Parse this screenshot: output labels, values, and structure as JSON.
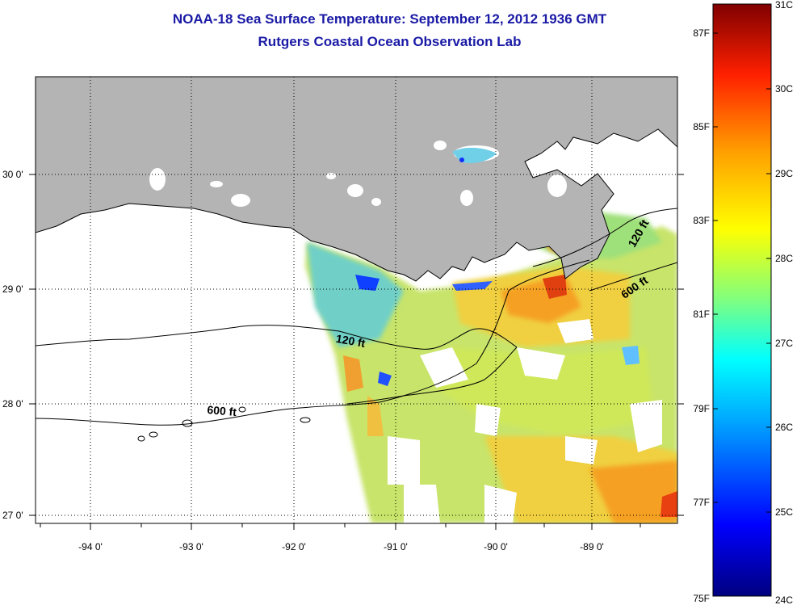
{
  "header": {
    "title": "NOAA-18 Sea Surface Temperature:  September 12, 2012 1936 GMT",
    "subtitle": "Rutgers Coastal Ocean Observation Lab"
  },
  "map": {
    "lon_labels": [
      "-94 0'",
      "-93 0'",
      "-92 0'",
      "-91 0'",
      "-90 0'",
      "-89 0'"
    ],
    "lat_labels": [
      "30 0'",
      "29 0'",
      "28 0'",
      "27 0'"
    ],
    "contour_labels": [
      "120 ft",
      "600 ft",
      "120 ft",
      "600 ft"
    ],
    "land_color": "#b4b4b4"
  },
  "colorbar": {
    "celsius_labels": [
      "31C",
      "30C",
      "29C",
      "28C",
      "27C",
      "26C",
      "25C",
      "24C"
    ],
    "fahrenheit_labels": [
      "87F",
      "85F",
      "83F",
      "81F",
      "79F",
      "77F",
      "75F"
    ],
    "colormap": "jet"
  }
}
